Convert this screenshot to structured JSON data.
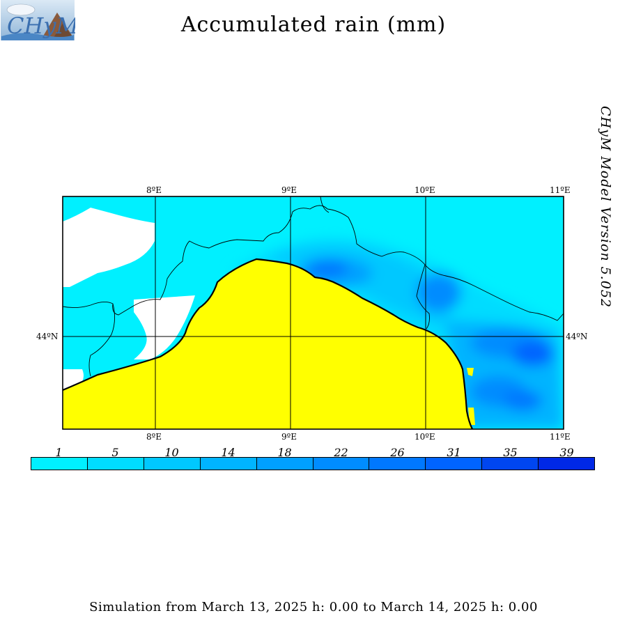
{
  "header": {
    "logo_text": "CHyM",
    "title": "Accumulated rain (mm)"
  },
  "side_label": "CHyM Model Version 5.052",
  "map": {
    "lon_labels": [
      "8ºE",
      "9ºE",
      "10ºE",
      "11ºE"
    ],
    "lat_labels": [
      "44ºN"
    ],
    "colors": {
      "land_fill": "#ffff00",
      "no_rain": "#ffffff",
      "coast": "#000000"
    }
  },
  "legend": {
    "levels": [
      "1",
      "5",
      "10",
      "14",
      "18",
      "22",
      "26",
      "31",
      "35",
      "39"
    ],
    "colors": [
      "#00f0ff",
      "#00dcff",
      "#00c8ff",
      "#00b4ff",
      "#00a0ff",
      "#008cff",
      "#0078ff",
      "#0064ff",
      "#0046f0",
      "#0028e6"
    ]
  },
  "footer": {
    "text": "Simulation from March 13, 2025 h: 0.00 to March 14, 2025 h: 0.00"
  }
}
